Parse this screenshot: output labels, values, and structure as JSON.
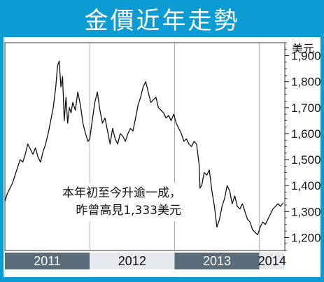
{
  "title": "金價近年走勢",
  "annotation": {
    "line1": "本年初至今升逾一成，",
    "line2": "昨曾高見1,333美元"
  },
  "colors": {
    "frame": "#0c9bd3",
    "line": "#111111",
    "axis_band_dark": "#5a6b7a",
    "axis_band_light": "#e6eaee"
  },
  "chart_data": {
    "type": "line",
    "title": "金價近年走勢",
    "ylabel": "美元",
    "ylim": [
      1150,
      1950
    ],
    "yticks": [
      1200,
      1300,
      1400,
      1500,
      1600,
      1700,
      1800,
      1900
    ],
    "ytick_labels": [
      "1,200",
      "1,300",
      "1,400",
      "1,500",
      "1,600",
      "1,700",
      "1,800",
      "1,900"
    ],
    "grid": false,
    "x_periods": [
      {
        "label": "2011",
        "start": 2011.0,
        "end": 2012.0
      },
      {
        "label": "2012",
        "start": 2012.0,
        "end": 2013.0
      },
      {
        "label": "2013",
        "start": 2013.0,
        "end": 2014.0
      },
      {
        "label": "2014",
        "start": 2014.0,
        "end": 2014.3
      }
    ],
    "xlim": [
      2011.0,
      2014.3
    ],
    "series": [
      {
        "x": [
          2011.0,
          2011.03,
          2011.06,
          2011.09,
          2011.12,
          2011.15,
          2011.18,
          2011.21,
          2011.24,
          2011.27,
          2011.3,
          2011.33,
          2011.36,
          2011.39,
          2011.42,
          2011.45,
          2011.48,
          2011.51,
          2011.54,
          2011.57,
          2011.6,
          2011.62,
          2011.64,
          2011.66,
          2011.68,
          2011.7,
          2011.72,
          2011.74,
          2011.76,
          2011.78,
          2011.8,
          2011.83,
          2011.86,
          2011.89,
          2011.92,
          2011.95,
          2011.98,
          2012.0,
          2012.03,
          2012.06,
          2012.09,
          2012.12,
          2012.15,
          2012.18,
          2012.21,
          2012.24,
          2012.27,
          2012.3,
          2012.33,
          2012.36,
          2012.39,
          2012.42,
          2012.45,
          2012.48,
          2012.51,
          2012.54,
          2012.57,
          2012.6,
          2012.63,
          2012.66,
          2012.69,
          2012.72,
          2012.75,
          2012.78,
          2012.81,
          2012.84,
          2012.87,
          2012.9,
          2012.93,
          2012.96,
          2012.99,
          2013.02,
          2013.05,
          2013.08,
          2013.11,
          2013.14,
          2013.17,
          2013.2,
          2013.23,
          2013.26,
          2013.29,
          2013.3,
          2013.32,
          2013.35,
          2013.38,
          2013.41,
          2013.44,
          2013.47,
          2013.5,
          2013.53,
          2013.56,
          2013.59,
          2013.62,
          2013.65,
          2013.68,
          2013.71,
          2013.74,
          2013.77,
          2013.8,
          2013.83,
          2013.86,
          2013.89,
          2013.92,
          2013.95,
          2013.98,
          2014.01,
          2014.04,
          2014.07,
          2014.1,
          2014.13,
          2014.16,
          2014.19,
          2014.22,
          2014.25,
          2014.28
        ],
        "y": [
          1340,
          1370,
          1390,
          1410,
          1440,
          1470,
          1500,
          1490,
          1520,
          1560,
          1540,
          1520,
          1545,
          1510,
          1490,
          1530,
          1560,
          1600,
          1650,
          1700,
          1780,
          1860,
          1880,
          1780,
          1820,
          1650,
          1740,
          1640,
          1700,
          1680,
          1720,
          1690,
          1760,
          1710,
          1640,
          1600,
          1570,
          1580,
          1650,
          1720,
          1760,
          1690,
          1640,
          1660,
          1610,
          1560,
          1620,
          1580,
          1560,
          1600,
          1590,
          1570,
          1600,
          1620,
          1610,
          1660,
          1710,
          1740,
          1780,
          1800,
          1760,
          1720,
          1730,
          1740,
          1700,
          1690,
          1680,
          1660,
          1670,
          1650,
          1675,
          1640,
          1620,
          1600,
          1570,
          1580,
          1560,
          1550,
          1570,
          1560,
          1480,
          1390,
          1400,
          1450,
          1440,
          1460,
          1380,
          1320,
          1240,
          1270,
          1320,
          1350,
          1400,
          1380,
          1330,
          1360,
          1320,
          1310,
          1330,
          1300,
          1270,
          1260,
          1230,
          1220,
          1210,
          1240,
          1260,
          1250,
          1270,
          1290,
          1310,
          1320,
          1330,
          1320,
          1333
        ]
      }
    ]
  }
}
